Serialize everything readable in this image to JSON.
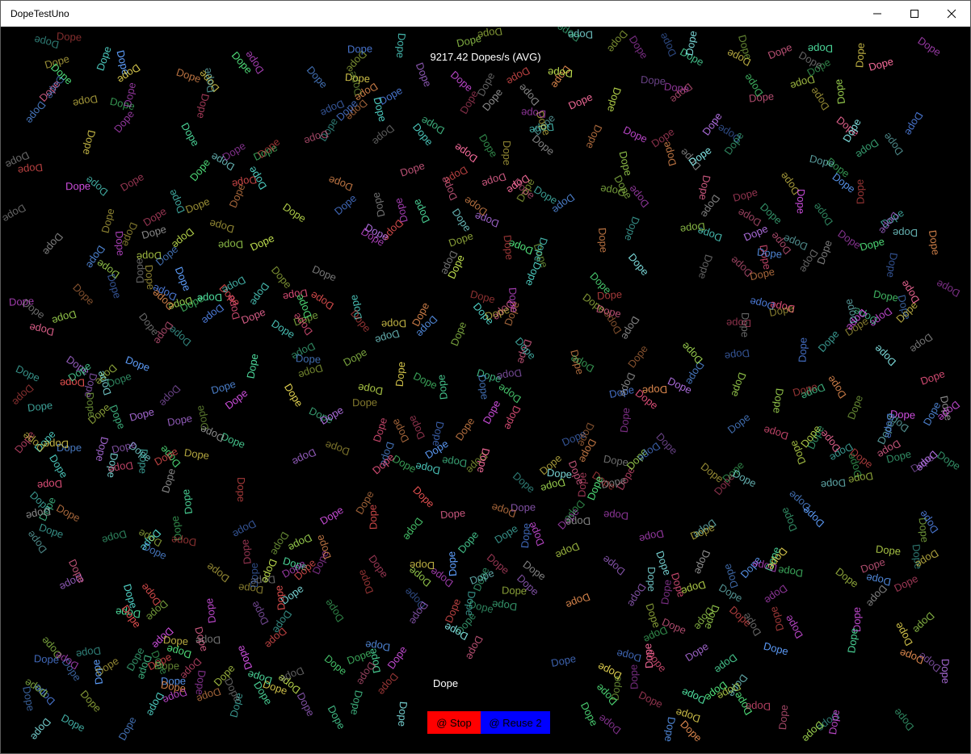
{
  "window": {
    "title": "DopeTestUno",
    "min_glyph": "–",
    "max_glyph": "☐",
    "close_glyph": "✕"
  },
  "fps_text": "9217.42 Dopes/s (AVG)",
  "center_label": "Dope",
  "buttons": {
    "stop_label": "@ Stop",
    "reuse_label": "@ Reuse 2",
    "stop_color": "#ff0000",
    "reuse_color": "#0000ff"
  },
  "dope": {
    "word": "Dope",
    "colors": [
      "#e0507a",
      "#4fd1c5",
      "#9bd14f",
      "#b06fe0",
      "#e0d04f",
      "#4f7fe0",
      "#e08a4f",
      "#50e07a",
      "#d04fe0",
      "#7fe0e0",
      "#e04f4f",
      "#a0a0a0",
      "#5fa0ff",
      "#ff6fa0",
      "#c0e04f",
      "#4fe0a0"
    ]
  }
}
